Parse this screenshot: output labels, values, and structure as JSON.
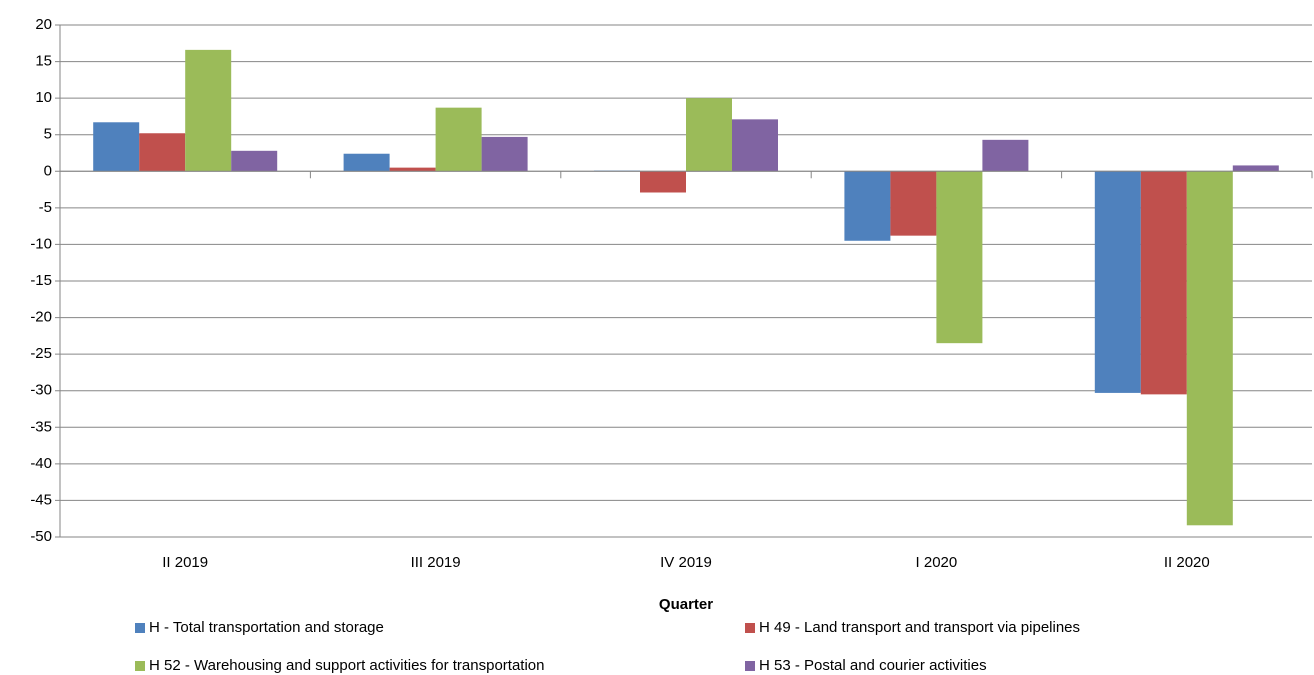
{
  "chart_data": {
    "type": "bar",
    "x_label": "Quarter",
    "categories": [
      "II 2019",
      "III 2019",
      "IV 2019",
      "I 2020",
      "II 2020"
    ],
    "series": [
      {
        "name": "H - Total transportation and storage",
        "color": "#4f81bd",
        "values": [
          6.7,
          2.4,
          0.1,
          -9.5,
          -30.3
        ]
      },
      {
        "name": "H 49 - Land transport and transport via pipelines",
        "color": "#c0504d",
        "values": [
          5.2,
          0.5,
          -2.9,
          -8.8,
          -30.5
        ]
      },
      {
        "name": "H 52 - Warehousing and support activities for transportation",
        "color": "#9bbb59",
        "values": [
          16.6,
          8.7,
          10.0,
          -23.5,
          -48.4
        ]
      },
      {
        "name": "H 53 - Postal and courier activities",
        "color": "#8064a2",
        "values": [
          2.8,
          4.7,
          7.1,
          4.3,
          0.8
        ]
      }
    ],
    "ylim": [
      -50,
      20
    ],
    "yticks": [
      -50,
      -45,
      -40,
      -35,
      -30,
      -25,
      -20,
      -15,
      -10,
      -5,
      0,
      5,
      10,
      15,
      20
    ],
    "grid": true,
    "legend": "bottom"
  }
}
